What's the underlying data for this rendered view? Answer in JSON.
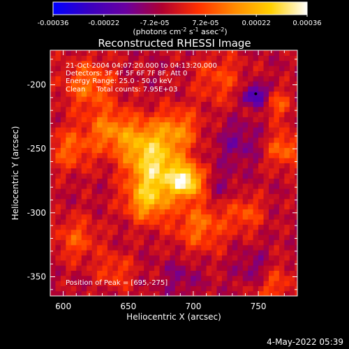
{
  "colorbar": {
    "ticks": [
      "-0.00036",
      "-0.00022",
      "-7.2e-05",
      "7.2e-05",
      "0.00022",
      "0.00036"
    ],
    "units_main": "(photons cm",
    "units_sup1": "-2",
    "units_mid1": " s",
    "units_sup2": "-1",
    "units_mid2": " asec",
    "units_sup3": "-2",
    "units_end": ")",
    "stops": [
      "#0000ff",
      "#3a00c0",
      "#6a00a0",
      "#b00030",
      "#ff3000",
      "#ff8a00",
      "#ffd000",
      "#ffffff"
    ]
  },
  "chart_data": {
    "type": "heatmap",
    "title": "Reconstructed RHESSI Image",
    "xlabel": "Heliocentric X (arcsec)",
    "ylabel": "Heliocentric Y (arcsec)",
    "xlim": [
      590,
      780
    ],
    "ylim": [
      -365,
      -173
    ],
    "xticks": [
      600,
      650,
      700,
      750
    ],
    "yticks": [
      -200,
      -250,
      -300,
      -350
    ],
    "grid": false,
    "colorbar_range": [
      -0.00036,
      0.00036
    ],
    "peak": [
      695,
      -275
    ],
    "blob_model": [
      {
        "x": 695,
        "y": -275,
        "s": 9,
        "v": 1.0
      },
      {
        "x": 672,
        "y": -265,
        "s": 14,
        "v": 0.75
      },
      {
        "x": 665,
        "y": -290,
        "s": 12,
        "v": 0.7
      },
      {
        "x": 660,
        "y": -245,
        "s": 14,
        "v": 0.55
      },
      {
        "x": 688,
        "y": -235,
        "s": 12,
        "v": 0.5
      },
      {
        "x": 635,
        "y": -235,
        "s": 12,
        "v": 0.45
      },
      {
        "x": 620,
        "y": -200,
        "s": 14,
        "v": 0.45
      },
      {
        "x": 605,
        "y": -250,
        "s": 12,
        "v": 0.4
      },
      {
        "x": 705,
        "y": -310,
        "s": 14,
        "v": 0.45
      },
      {
        "x": 740,
        "y": -300,
        "s": 10,
        "v": 0.35
      },
      {
        "x": 770,
        "y": -250,
        "s": 10,
        "v": 0.45
      },
      {
        "x": 765,
        "y": -215,
        "s": 8,
        "v": 0.35
      },
      {
        "x": 760,
        "y": -355,
        "s": 12,
        "v": 0.35
      },
      {
        "x": 640,
        "y": -345,
        "s": 10,
        "v": 0.3
      },
      {
        "x": 610,
        "y": -320,
        "s": 12,
        "v": 0.35
      },
      {
        "x": 720,
        "y": -195,
        "s": 14,
        "v": 0.3
      },
      {
        "x": 748,
        "y": -208,
        "s": 6,
        "v": -0.7
      },
      {
        "x": 735,
        "y": -245,
        "s": 12,
        "v": -0.25
      },
      {
        "x": 748,
        "y": -345,
        "s": 10,
        "v": -0.3
      },
      {
        "x": 690,
        "y": -350,
        "s": 10,
        "v": -0.2
      },
      {
        "x": 720,
        "y": -280,
        "s": 10,
        "v": -0.15
      }
    ]
  },
  "info": {
    "line1": "21-Oct-2004 04:07:20.000 to 04:13:20.000",
    "line2": "Detectors: 3F 4F 5F 6F 7F 8F, Att 0",
    "line3": "Energy Range: 25.0 - 50.0 keV",
    "line4": "Clean     Total counts: 7.95E+03",
    "peak_label": "Position of Peak = [695,-275]"
  },
  "timestamp": "4-May-2022 05:39"
}
